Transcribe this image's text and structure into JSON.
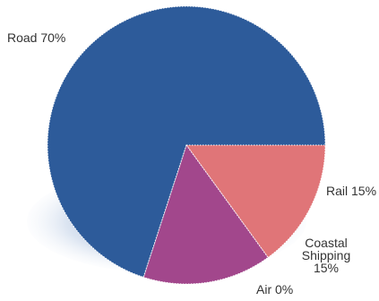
{
  "chart_data": {
    "type": "pie",
    "title": "",
    "slices": [
      {
        "name": "Road",
        "value": 70,
        "color": "#2d5b9a",
        "label_lines": [
          "Road 70%"
        ]
      },
      {
        "name": "Rail",
        "value": 15,
        "color": "#e07578",
        "label_lines": [
          "Rail 15%"
        ]
      },
      {
        "name": "Coastal Shipping",
        "value": 15,
        "color": "#a2478c",
        "label_lines": [
          "Coastal",
          "Shipping",
          "15%"
        ]
      },
      {
        "name": "Air",
        "value": 0,
        "color": "#5b3c84",
        "label_lines": [
          "Air 0%"
        ]
      }
    ],
    "legend": "none",
    "separator_color": "#ffffff",
    "shadow_color": "#1f4f8d"
  }
}
